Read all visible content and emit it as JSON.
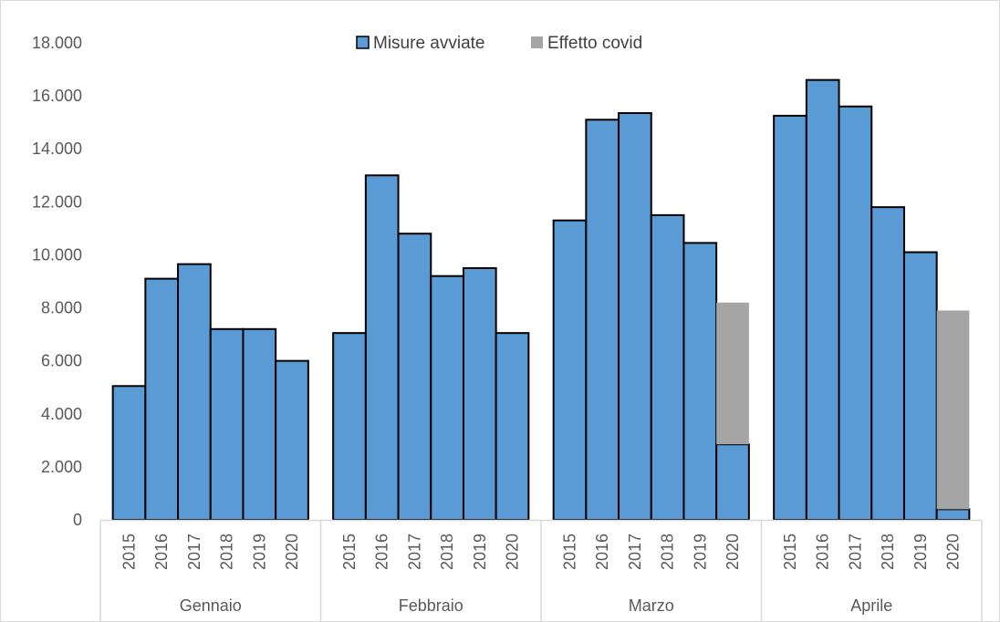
{
  "chart_data": {
    "type": "bar",
    "stacked": true,
    "groups": [
      "Gennaio",
      "Febbraio",
      "Marzo",
      "Aprile"
    ],
    "years": [
      "2015",
      "2016",
      "2017",
      "2018",
      "2019",
      "2020"
    ],
    "series": [
      {
        "name": "Misure avviate",
        "color": "#5B9BD5",
        "values": [
          [
            5050,
            9100,
            9650,
            7200,
            7200,
            6000
          ],
          [
            7050,
            13000,
            10800,
            9200,
            9500,
            7050
          ],
          [
            11300,
            15100,
            15350,
            11500,
            10450,
            2850
          ],
          [
            15250,
            16600,
            15600,
            11800,
            10100,
            400
          ]
        ]
      },
      {
        "name": "Effetto covid",
        "color": "#A5A5A5",
        "values": [
          [
            0,
            0,
            0,
            0,
            0,
            0
          ],
          [
            0,
            0,
            0,
            0,
            0,
            0
          ],
          [
            0,
            0,
            0,
            0,
            0,
            5350
          ],
          [
            0,
            0,
            0,
            0,
            0,
            7500
          ]
        ]
      }
    ],
    "ylim": [
      0,
      18000
    ],
    "yticks": [
      "0",
      "2.000",
      "4.000",
      "6.000",
      "8.000",
      "10.000",
      "12.000",
      "14.000",
      "16.000",
      "18.000"
    ],
    "legend_position": "top-center",
    "grid": false,
    "title": "",
    "xlabel": "",
    "ylabel": ""
  }
}
